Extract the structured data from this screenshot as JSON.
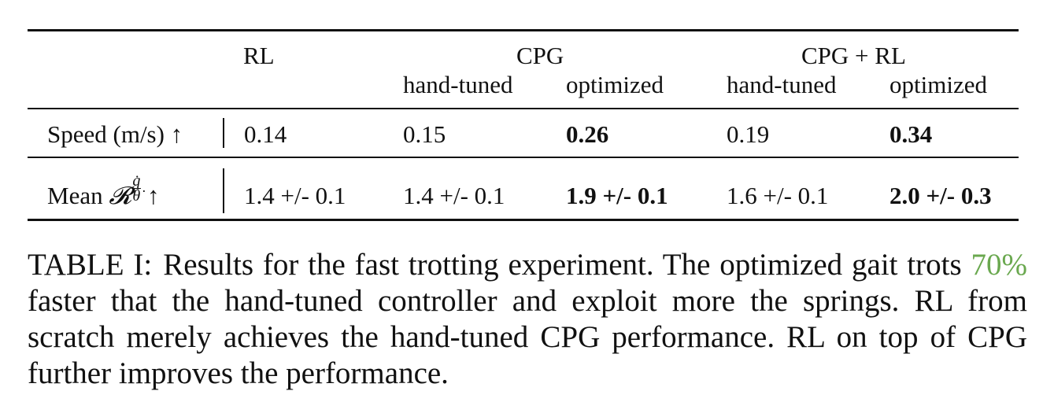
{
  "table": {
    "headers": {
      "rl": "RL",
      "cpg": "CPG",
      "cpg_rl": "CPG + RL",
      "cpg_hand": "hand-tuned",
      "cpg_opt": "optimized",
      "cpgrl_hand": "hand-tuned",
      "cpgrl_opt": "optimized"
    },
    "rows": [
      {
        "label": "Speed (m/s) ↑",
        "values": [
          "0.14",
          "0.15",
          "0.26",
          "0.19",
          "0.34"
        ]
      },
      {
        "label_prefix": "Mean ",
        "label_symbol": "𝓡",
        "label_frac_num": "q̇",
        "label_frac_den": "θ̇",
        "label_suffix": " ↑",
        "values": [
          "1.4 +/- 0.1",
          "1.4 +/- 0.1",
          "1.9 +/- 0.1",
          "1.6 +/- 0.1",
          "2.0 +/- 0.3"
        ]
      }
    ]
  },
  "caption": {
    "label": "TABLE I:",
    "text_a": "Results for the fast trotting experiment. The optimized gait trots ",
    "highlight": "70%",
    "text_b": " faster that the hand-tuned controller and exploit more the springs. RL from scratch merely achieves the hand-tuned CPG performance. RL on top of CPG further improves the performance.",
    "highlight_color": "#6aa84f"
  }
}
